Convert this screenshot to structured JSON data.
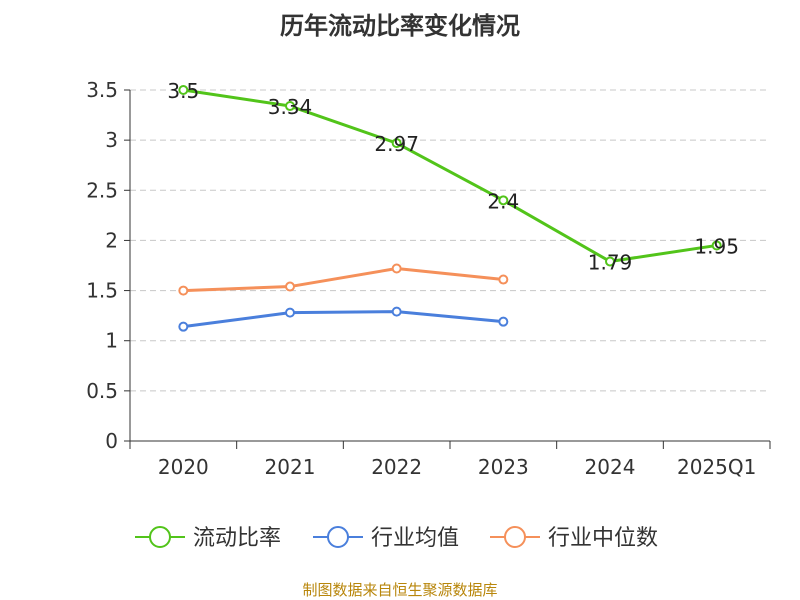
{
  "page": {
    "title": "历年流动比率变化情况",
    "source": "制图数据来自恒生聚源数据库"
  },
  "chart_data": {
    "type": "line",
    "title": "历年流动比率变化情况",
    "xlabel": "",
    "ylabel": "",
    "categories": [
      "2020",
      "2021",
      "2022",
      "2023",
      "2024",
      "2025Q1"
    ],
    "ylim": [
      0,
      3.5
    ],
    "yticks": [
      "0",
      "0.5",
      "1",
      "1.5",
      "2",
      "2.5",
      "3",
      "3.5"
    ],
    "grid": true,
    "legend_position": "bottom",
    "series": [
      {
        "name": "流动比率",
        "color": "#52c41a",
        "values": [
          3.5,
          3.34,
          2.97,
          2.4,
          1.79,
          1.95
        ],
        "labels": [
          "3.5",
          "3.34",
          "2.97",
          "2.4",
          "1.79",
          "1.95"
        ],
        "show_labels": true
      },
      {
        "name": "行业均值",
        "color": "#4a7fdc",
        "values": [
          1.14,
          1.28,
          1.29,
          1.19,
          null,
          null
        ],
        "show_labels": false
      },
      {
        "name": "行业中位数",
        "color": "#f5905a",
        "values": [
          1.5,
          1.54,
          1.72,
          1.61,
          null,
          null
        ],
        "show_labels": false
      }
    ]
  }
}
